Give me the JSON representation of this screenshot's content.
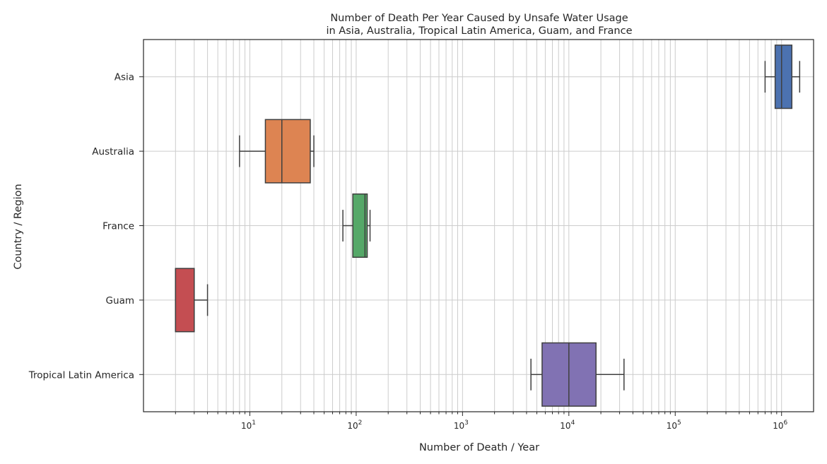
{
  "chart_data": {
    "type": "boxplot",
    "orientation": "horizontal",
    "title_lines": [
      "Number of Death Per Year Caused by Unsafe Water Usage",
      "in Asia, Australia, Tropical Latin America, Guam, and France"
    ],
    "xlabel": "Number of Death / Year",
    "ylabel": "Country / Region",
    "x_scale": "log",
    "xlim": [
      1,
      2000000
    ],
    "grid": true,
    "x_ticks": [
      {
        "base": "10",
        "exp": "1",
        "value": 10
      },
      {
        "base": "10",
        "exp": "2",
        "value": 100
      },
      {
        "base": "10",
        "exp": "3",
        "value": 1000
      },
      {
        "base": "10",
        "exp": "4",
        "value": 10000
      },
      {
        "base": "10",
        "exp": "5",
        "value": 100000
      },
      {
        "base": "10",
        "exp": "6",
        "value": 1000000
      }
    ],
    "categories": [
      "Asia",
      "Australia",
      "France",
      "Guam",
      "Tropical Latin America"
    ],
    "series": [
      {
        "category": "Asia",
        "color": "#4c72b0",
        "whisker_low": 700000,
        "q1": 870000,
        "median": 1000000,
        "q3": 1250000,
        "whisker_high": 1480000
      },
      {
        "category": "Australia",
        "color": "#dd8452",
        "whisker_low": 8,
        "q1": 14,
        "median": 20,
        "q3": 37,
        "whisker_high": 40
      },
      {
        "category": "France",
        "color": "#55a868",
        "whisker_low": 75,
        "q1": 93,
        "median": 121,
        "q3": 127,
        "whisker_high": 135
      },
      {
        "category": "Guam",
        "color": "#c44e52",
        "whisker_low": 2,
        "q1": 2,
        "median": 2,
        "q3": 3,
        "whisker_high": 4
      },
      {
        "category": "Tropical Latin America",
        "color": "#8172b3",
        "whisker_low": 4400,
        "q1": 5600,
        "median": 10000,
        "q3": 18000,
        "whisker_high": 33000
      }
    ]
  }
}
